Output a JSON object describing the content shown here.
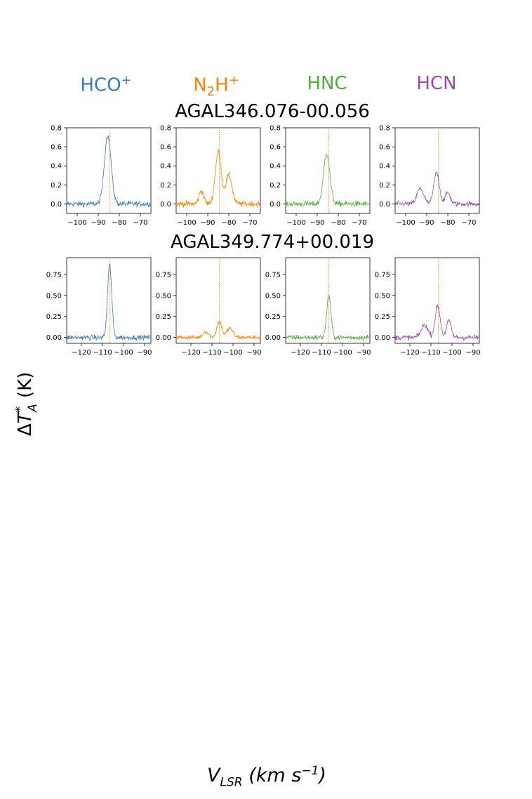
{
  "figure": {
    "molecules": [
      {
        "name": "HCO",
        "sup": "+",
        "sub": "",
        "tail": "",
        "color": "#3b7ab8"
      },
      {
        "name": "N",
        "sub": "2",
        "tail": "H",
        "sup": "+",
        "color": "#ff8000"
      },
      {
        "name": "HNC",
        "sub": "",
        "tail": "",
        "sup": "",
        "color": "#4daf3a"
      },
      {
        "name": "HCN",
        "sub": "",
        "tail": "",
        "sup": "",
        "color": "#9a4ea3"
      }
    ],
    "ylabel": "ΔT*A (K)",
    "xlabel": "VLSR (km s−1)"
  },
  "chart_data": [
    {
      "type": "line",
      "source": "AGAL346.076-00.056",
      "xlabel": "",
      "ylabel": "",
      "xlim": [
        -105,
        -65
      ],
      "ylim": [
        -0.1,
        0.8
      ],
      "xticks": [
        -100,
        -90,
        -80,
        -70
      ],
      "yticks": [
        0.0,
        0.2,
        0.4,
        0.6,
        0.8
      ],
      "vref": -84.5,
      "grid": false,
      "series": [
        {
          "molecule": "HCO+",
          "peaks": [
            {
              "v": -85.5,
              "amp": 0.72,
              "w": 1.6
            }
          ],
          "noise": 0.03
        },
        {
          "molecule": "N2H+",
          "peaks": [
            {
              "v": -93.0,
              "amp": 0.14,
              "w": 1.1
            },
            {
              "v": -85.0,
              "amp": 0.55,
              "w": 1.4
            },
            {
              "v": -80.0,
              "amp": 0.3,
              "w": 1.5
            }
          ],
          "noise": 0.03
        },
        {
          "molecule": "HNC",
          "peaks": [
            {
              "v": -85.5,
              "amp": 0.53,
              "w": 1.5
            }
          ],
          "noise": 0.03
        },
        {
          "molecule": "HCN",
          "peaks": [
            {
              "v": -93.0,
              "amp": 0.16,
              "w": 1.6
            },
            {
              "v": -85.3,
              "amp": 0.33,
              "w": 1.3
            },
            {
              "v": -80.0,
              "amp": 0.12,
              "w": 1.2
            }
          ],
          "noise": 0.025
        }
      ]
    },
    {
      "type": "line",
      "source": "AGAL349.774+00.019",
      "xlabel": "",
      "ylabel": "",
      "xlim": [
        -127,
        -87
      ],
      "ylim": [
        -0.07,
        0.95
      ],
      "xticks": [
        -120,
        -110,
        -100,
        -90
      ],
      "yticks": [
        0.0,
        0.25,
        0.5,
        0.75
      ],
      "vref": -106.5,
      "grid": false,
      "series": [
        {
          "molecule": "HCO+",
          "peaks": [
            {
              "v": -106.6,
              "amp": 0.86,
              "w": 1.0
            }
          ],
          "noise": 0.03
        },
        {
          "molecule": "N2H+",
          "peaks": [
            {
              "v": -113.0,
              "amp": 0.07,
              "w": 1.3
            },
            {
              "v": -106.5,
              "amp": 0.19,
              "w": 1.2
            },
            {
              "v": -101.5,
              "amp": 0.11,
              "w": 1.4
            }
          ],
          "noise": 0.025
        },
        {
          "molecule": "HNC",
          "peaks": [
            {
              "v": -106.5,
              "amp": 0.5,
              "w": 1.0
            }
          ],
          "noise": 0.03
        },
        {
          "molecule": "HCN",
          "peaks": [
            {
              "v": -113.0,
              "amp": 0.15,
              "w": 1.6
            },
            {
              "v": -106.8,
              "amp": 0.38,
              "w": 1.2
            },
            {
              "v": -101.5,
              "amp": 0.2,
              "w": 1.1
            }
          ],
          "noise": 0.03
        }
      ]
    }
  ]
}
